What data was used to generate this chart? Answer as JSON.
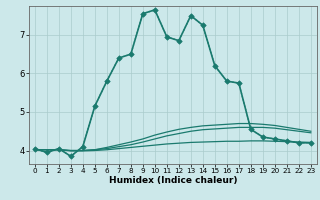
{
  "xlabel": "Humidex (Indice chaleur)",
  "bg_color": "#cce8ea",
  "grid_color": "#aacccc",
  "line_color": "#1a7a6e",
  "xlim": [
    -0.5,
    23.5
  ],
  "ylim": [
    3.65,
    7.75
  ],
  "xticks": [
    0,
    1,
    2,
    3,
    4,
    5,
    6,
    7,
    8,
    9,
    10,
    11,
    12,
    13,
    14,
    15,
    16,
    17,
    18,
    19,
    20,
    21,
    22,
    23
  ],
  "yticks": [
    4,
    5,
    6,
    7
  ],
  "series": [
    {
      "x": [
        0,
        1,
        2,
        3,
        4,
        5,
        6,
        7,
        8,
        9,
        10,
        11,
        12,
        13,
        14,
        15,
        16,
        17,
        18,
        19,
        20,
        21,
        22,
        23
      ],
      "y": [
        4.05,
        3.95,
        4.05,
        3.85,
        4.1,
        5.15,
        5.8,
        6.4,
        6.5,
        7.55,
        7.65,
        6.95,
        6.85,
        7.5,
        7.25,
        6.2,
        5.8,
        5.75,
        4.55,
        4.35,
        4.3,
        4.25,
        4.2,
        4.2
      ],
      "linestyle": "solid",
      "marker": true,
      "linewidth": 1.2
    },
    {
      "x": [
        0,
        1,
        2,
        3,
        4,
        5,
        6,
        7,
        8,
        9,
        10,
        11,
        12,
        13,
        14,
        15,
        16,
        17,
        18,
        19,
        20,
        21,
        22,
        23
      ],
      "y": [
        4.05,
        3.95,
        4.05,
        3.85,
        4.1,
        5.15,
        5.8,
        6.4,
        6.5,
        7.55,
        7.65,
        6.95,
        6.85,
        7.5,
        7.25,
        6.2,
        5.8,
        5.75,
        4.55,
        4.35,
        4.3,
        4.25,
        4.2,
        4.2
      ],
      "linestyle": "dotted",
      "marker": false,
      "linewidth": 0.9
    },
    {
      "x": [
        0,
        1,
        2,
        3,
        4,
        5,
        6,
        7,
        8,
        9,
        10,
        11,
        12,
        13,
        14,
        15,
        16,
        17,
        18,
        19,
        20,
        21,
        22,
        23
      ],
      "y": [
        4.02,
        4.02,
        4.02,
        4.0,
        4.0,
        4.02,
        4.05,
        4.1,
        4.15,
        4.22,
        4.3,
        4.38,
        4.44,
        4.5,
        4.54,
        4.56,
        4.58,
        4.6,
        4.6,
        4.6,
        4.58,
        4.54,
        4.5,
        4.46
      ],
      "linestyle": "solid",
      "marker": false,
      "linewidth": 0.9
    },
    {
      "x": [
        0,
        1,
        2,
        3,
        4,
        5,
        6,
        7,
        8,
        9,
        10,
        11,
        12,
        13,
        14,
        15,
        16,
        17,
        18,
        19,
        20,
        21,
        22,
        23
      ],
      "y": [
        4.02,
        4.02,
        4.02,
        4.0,
        4.0,
        4.02,
        4.08,
        4.15,
        4.22,
        4.3,
        4.4,
        4.48,
        4.55,
        4.6,
        4.64,
        4.66,
        4.68,
        4.7,
        4.7,
        4.68,
        4.65,
        4.6,
        4.55,
        4.5
      ],
      "linestyle": "solid",
      "marker": false,
      "linewidth": 0.9
    },
    {
      "x": [
        0,
        1,
        2,
        3,
        4,
        5,
        6,
        7,
        8,
        9,
        10,
        11,
        12,
        13,
        14,
        15,
        16,
        17,
        18,
        19,
        20,
        21,
        22,
        23
      ],
      "y": [
        4.02,
        4.02,
        4.02,
        3.99,
        3.99,
        4.0,
        4.02,
        4.05,
        4.08,
        4.11,
        4.14,
        4.17,
        4.19,
        4.21,
        4.22,
        4.23,
        4.24,
        4.24,
        4.25,
        4.25,
        4.24,
        4.23,
        4.22,
        4.21
      ],
      "linestyle": "solid",
      "marker": false,
      "linewidth": 0.9
    }
  ]
}
